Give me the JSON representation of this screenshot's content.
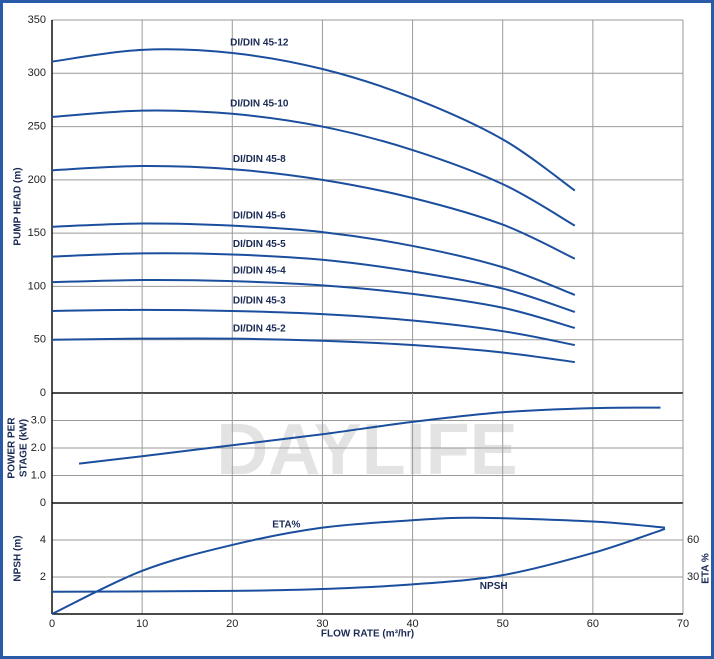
{
  "chart_data": [
    {
      "type": "line",
      "ylabel": "PUMP HEAD (m)",
      "watermark": "DAYLIFE",
      "x": [
        0,
        10,
        20,
        30,
        40,
        50,
        58
      ],
      "xlim": [
        0,
        70
      ],
      "ylim": [
        0,
        350
      ],
      "yticks": [
        0,
        50,
        100,
        150,
        200,
        250,
        300,
        350
      ],
      "grid": true,
      "series": [
        {
          "name": "DI/DIN 45-12",
          "color": "#1b4f9e",
          "values": [
            311,
            322,
            319,
            304,
            277,
            238,
            190
          ]
        },
        {
          "name": "DI/DIN 45-10",
          "color": "#1b4f9e",
          "values": [
            259,
            265,
            262,
            250,
            228,
            196,
            157
          ]
        },
        {
          "name": "DI/DIN 45-8",
          "color": "#1b4f9e",
          "values": [
            209,
            213,
            210,
            200,
            183,
            158,
            126
          ]
        },
        {
          "name": "DI/DIN 45-6",
          "color": "#1b4f9e",
          "values": [
            156,
            159,
            157,
            151,
            138,
            118,
            92
          ]
        },
        {
          "name": "DI/DIN 45-5",
          "color": "#1b4f9e",
          "values": [
            128,
            131,
            130,
            125,
            114,
            98,
            76
          ]
        },
        {
          "name": "DI/DIN 45-4",
          "color": "#1b4f9e",
          "values": [
            104,
            106,
            105,
            101,
            93,
            80,
            61
          ]
        },
        {
          "name": "DI/DIN 45-3",
          "color": "#1b4f9e",
          "values": [
            77,
            78,
            77,
            74,
            68,
            58,
            45
          ]
        },
        {
          "name": "DI/DIN 45-2",
          "color": "#1b4f9e",
          "values": [
            50,
            51,
            51,
            49,
            45,
            38,
            29
          ]
        }
      ]
    },
    {
      "type": "line",
      "ylabel": [
        "POWER PER",
        "STAGE (kW)"
      ],
      "x": [
        3,
        10,
        20,
        30,
        40,
        50,
        60,
        67.5
      ],
      "xlim": [
        0,
        70
      ],
      "ylim": [
        0,
        4
      ],
      "yticks": [
        0,
        {
          "value": 1,
          "label": "1.0"
        },
        {
          "value": 2,
          "label": "2.0"
        },
        {
          "value": 3,
          "label": "3.0"
        }
      ],
      "grid": true,
      "series": [
        {
          "color": "#1b4f9e",
          "values": [
            1.43,
            1.7,
            2.1,
            2.5,
            2.95,
            3.3,
            3.45,
            3.47
          ]
        }
      ]
    },
    {
      "type": "line",
      "ylabel": "NPSH (m)",
      "y2label": "ETA %",
      "xlabel": "FLOW RATE (m³/hr)",
      "xlim": [
        0,
        70
      ],
      "xticks": [
        0,
        10,
        20,
        30,
        40,
        50,
        60,
        70
      ],
      "ylim": [
        0,
        6
      ],
      "yticks": [
        2,
        4
      ],
      "y2lim": [
        0,
        90
      ],
      "y2ticks": [
        30,
        60
      ],
      "grid": true,
      "series": [
        {
          "name": "NPSH",
          "color": "#1b4f9e",
          "x": [
            0,
            20,
            30,
            40,
            50,
            60,
            68
          ],
          "values": [
            1.2,
            1.25,
            1.35,
            1.6,
            2.1,
            3.3,
            4.6
          ]
        },
        {
          "name": "ETA%",
          "color": "#1b4f9e",
          "axis": "y2",
          "x": [
            0,
            10,
            20,
            30,
            40,
            47,
            60,
            68
          ],
          "values": [
            0,
            35,
            56,
            70,
            76,
            78,
            75,
            70
          ]
        }
      ]
    }
  ]
}
